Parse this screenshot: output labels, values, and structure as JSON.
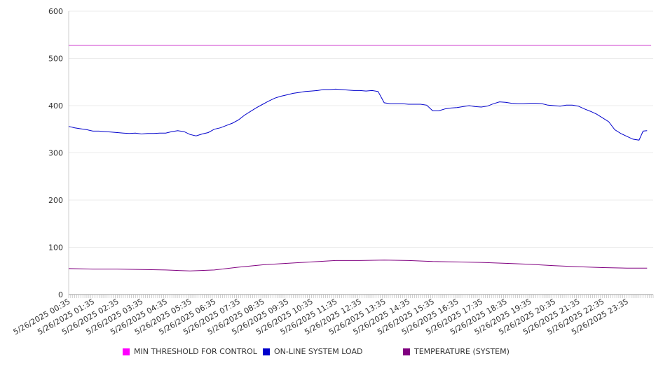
{
  "chart_data": {
    "type": "line",
    "ylim": [
      0,
      600
    ],
    "yticks": [
      0,
      100,
      200,
      300,
      400,
      500,
      600
    ],
    "xlim_minutes": [
      0,
      1445
    ],
    "xtick_labels": [
      "5/26/2025 00:35",
      "5/26/2025 01:35",
      "5/26/2025 02:35",
      "5/26/2025 03:35",
      "5/26/2025 04:35",
      "5/26/2025 05:35",
      "5/26/2025 06:35",
      "5/26/2025 07:35",
      "5/26/2025 08:35",
      "5/26/2025 09:35",
      "5/26/2025 10:35",
      "5/26/2025 11:35",
      "5/26/2025 12:35",
      "5/26/2025 13:35",
      "5/26/2025 14:35",
      "5/26/2025 15:35",
      "5/26/2025 16:35",
      "5/26/2025 17:35",
      "5/26/2025 18:35",
      "5/26/2025 19:35",
      "5/26/2025 20:35",
      "5/26/2025 21:35",
      "5/26/2025 22:35",
      "5/26/2025 23:35"
    ],
    "grid": true,
    "legend_position": "bottom",
    "series": [
      {
        "name": "MIN THRESHOLD FOR CONTROL",
        "color": "#cc33cc",
        "points": [
          [
            "00:35",
            528
          ],
          [
            "00:35+1d",
            528
          ]
        ]
      },
      {
        "name": "ON-LINE SYSTEM LOAD",
        "color": "#0000cc",
        "points": [
          [
            "00:35",
            356
          ],
          [
            "00:50",
            353
          ],
          [
            "01:05",
            351
          ],
          [
            "01:20",
            349
          ],
          [
            "01:35",
            346
          ],
          [
            "01:50",
            346
          ],
          [
            "02:05",
            345
          ],
          [
            "02:20",
            344
          ],
          [
            "02:35",
            343
          ],
          [
            "02:50",
            342
          ],
          [
            "03:05",
            341
          ],
          [
            "03:20",
            342
          ],
          [
            "03:35",
            340
          ],
          [
            "03:50",
            341
          ],
          [
            "04:05",
            341
          ],
          [
            "04:20",
            342
          ],
          [
            "04:35",
            342
          ],
          [
            "04:50",
            345
          ],
          [
            "05:05",
            347
          ],
          [
            "05:20",
            345
          ],
          [
            "05:35",
            339
          ],
          [
            "05:50",
            336
          ],
          [
            "06:05",
            340
          ],
          [
            "06:20",
            343
          ],
          [
            "06:35",
            350
          ],
          [
            "06:50",
            353
          ],
          [
            "07:05",
            358
          ],
          [
            "07:20",
            363
          ],
          [
            "07:35",
            370
          ],
          [
            "07:50",
            380
          ],
          [
            "08:05",
            388
          ],
          [
            "08:20",
            396
          ],
          [
            "08:35",
            403
          ],
          [
            "08:50",
            410
          ],
          [
            "09:05",
            416
          ],
          [
            "09:20",
            420
          ],
          [
            "09:35",
            423
          ],
          [
            "09:50",
            426
          ],
          [
            "10:05",
            428
          ],
          [
            "10:20",
            430
          ],
          [
            "10:35",
            431
          ],
          [
            "10:50",
            432
          ],
          [
            "11:05",
            434
          ],
          [
            "11:20",
            434
          ],
          [
            "11:35",
            435
          ],
          [
            "11:50",
            434
          ],
          [
            "12:05",
            433
          ],
          [
            "12:20",
            432
          ],
          [
            "12:35",
            432
          ],
          [
            "12:50",
            431
          ],
          [
            "13:05",
            432
          ],
          [
            "13:20",
            430
          ],
          [
            "13:35",
            406
          ],
          [
            "13:50",
            404
          ],
          [
            "14:05",
            404
          ],
          [
            "14:20",
            404
          ],
          [
            "14:35",
            403
          ],
          [
            "14:50",
            403
          ],
          [
            "15:05",
            403
          ],
          [
            "15:20",
            401
          ],
          [
            "15:35",
            389
          ],
          [
            "15:50",
            389
          ],
          [
            "16:05",
            393
          ],
          [
            "16:20",
            395
          ],
          [
            "16:35",
            396
          ],
          [
            "16:50",
            398
          ],
          [
            "17:05",
            400
          ],
          [
            "17:20",
            398
          ],
          [
            "17:35",
            397
          ],
          [
            "17:50",
            399
          ],
          [
            "18:05",
            404
          ],
          [
            "18:20",
            408
          ],
          [
            "18:35",
            407
          ],
          [
            "18:50",
            405
          ],
          [
            "19:05",
            404
          ],
          [
            "19:20",
            404
          ],
          [
            "19:35",
            405
          ],
          [
            "19:50",
            405
          ],
          [
            "20:05",
            404
          ],
          [
            "20:20",
            401
          ],
          [
            "20:35",
            400
          ],
          [
            "20:50",
            399
          ],
          [
            "21:05",
            401
          ],
          [
            "21:20",
            401
          ],
          [
            "21:35",
            399
          ],
          [
            "21:50",
            393
          ],
          [
            "22:05",
            388
          ],
          [
            "22:20",
            382
          ],
          [
            "22:35",
            374
          ],
          [
            "22:50",
            366
          ],
          [
            "23:05",
            349
          ],
          [
            "23:20",
            341
          ],
          [
            "23:35",
            335
          ],
          [
            "23:50",
            329
          ],
          [
            "24:05",
            327
          ],
          [
            "24:15",
            346
          ],
          [
            "24:25",
            347
          ]
        ]
      },
      {
        "name": "TEMPERATURE (SYSTEM)",
        "color": "#800080",
        "points": [
          [
            "00:35",
            55
          ],
          [
            "01:35",
            54
          ],
          [
            "02:35",
            54
          ],
          [
            "03:35",
            53
          ],
          [
            "04:35",
            52
          ],
          [
            "05:35",
            50
          ],
          [
            "06:35",
            52
          ],
          [
            "07:35",
            58
          ],
          [
            "08:35",
            63
          ],
          [
            "09:35",
            66
          ],
          [
            "10:35",
            69
          ],
          [
            "11:35",
            72
          ],
          [
            "12:35",
            72
          ],
          [
            "13:35",
            73
          ],
          [
            "14:35",
            72
          ],
          [
            "15:35",
            70
          ],
          [
            "16:35",
            69
          ],
          [
            "17:35",
            68
          ],
          [
            "18:35",
            66
          ],
          [
            "19:35",
            64
          ],
          [
            "20:35",
            61
          ],
          [
            "21:35",
            59
          ],
          [
            "22:35",
            57
          ],
          [
            "23:35",
            56
          ],
          [
            "24:25",
            56
          ]
        ]
      }
    ]
  }
}
